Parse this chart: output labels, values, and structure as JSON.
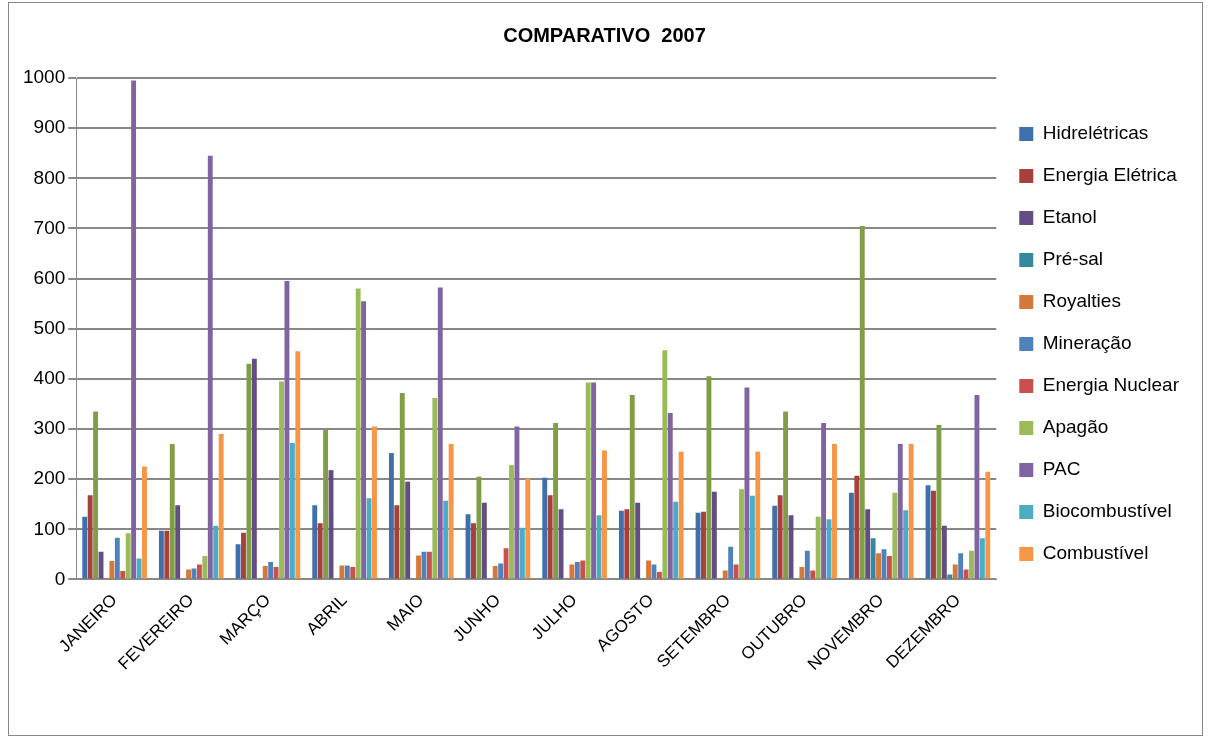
{
  "chart_data": {
    "type": "bar",
    "title": "COMPARATIVO  2007",
    "categories": [
      "JANEIRO",
      "FEVEREIRO",
      "MARÇO",
      "ABRIL",
      "MAIO",
      "JUNHO",
      "JULHO",
      "AGOSTO",
      "SETEMBRO",
      "OUTUBRO",
      "NOVEMBRO",
      "DEZEMBRO"
    ],
    "series": [
      {
        "name": "Hidrelétricas",
        "color": "#3f70aa",
        "values": [
          125,
          97,
          70,
          148,
          252,
          130,
          203,
          137,
          133,
          147,
          173,
          188
        ]
      },
      {
        "name": "Energia Elétrica",
        "color": "#a5403d",
        "values": [
          168,
          97,
          93,
          112,
          148,
          112,
          168,
          140,
          135,
          168,
          207,
          177
        ]
      },
      {
        "color": "#7f9e46",
        "values": [
          335,
          270,
          430,
          298,
          372,
          205,
          312,
          368,
          405,
          335,
          705,
          308
        ]
      },
      {
        "name": "Etanol",
        "color": "#644d82",
        "values": [
          55,
          148,
          440,
          218,
          195,
          153,
          140,
          153,
          175,
          128,
          140,
          107
        ]
      },
      {
        "name": "Pré-sal",
        "color": "#34899e",
        "values": [
          null,
          null,
          null,
          null,
          null,
          null,
          null,
          null,
          null,
          null,
          82,
          10
        ]
      },
      {
        "name": "Royalties",
        "color": "#d6783a",
        "values": [
          37,
          20,
          27,
          28,
          48,
          27,
          30,
          38,
          18,
          25,
          52,
          30
        ]
      },
      {
        "name": "Mineração",
        "color": "#4f81bd",
        "values": [
          83,
          22,
          35,
          28,
          55,
          32,
          35,
          30,
          65,
          57,
          60,
          52
        ]
      },
      {
        "name": "Energia Nuclear",
        "color": "#c9504d",
        "values": [
          17,
          30,
          25,
          25,
          55,
          62,
          38,
          15,
          30,
          18,
          47,
          20
        ]
      },
      {
        "name": "Apagão",
        "color": "#9bbb59",
        "values": [
          92,
          47,
          395,
          580,
          362,
          228,
          393,
          457,
          180,
          125,
          173,
          57
        ]
      },
      {
        "name": "PAC",
        "color": "#8064a2",
        "values": [
          995,
          845,
          595,
          555,
          582,
          305,
          393,
          332,
          383,
          312,
          270,
          368
        ]
      },
      {
        "name": "Biocombustível",
        "color": "#4bacc6",
        "values": [
          42,
          107,
          272,
          162,
          157,
          103,
          128,
          155,
          167,
          120,
          138,
          82
        ]
      },
      {
        "name": "Combustível",
        "color": "#f79646",
        "values": [
          225,
          290,
          455,
          305,
          270,
          202,
          257,
          255,
          255,
          270,
          270,
          215
        ]
      }
    ],
    "ylim": [
      0,
      1000
    ],
    "yticks": [
      0,
      100,
      200,
      300,
      400,
      500,
      600,
      700,
      800,
      900,
      1000
    ],
    "grid": "y",
    "legend": "right"
  }
}
